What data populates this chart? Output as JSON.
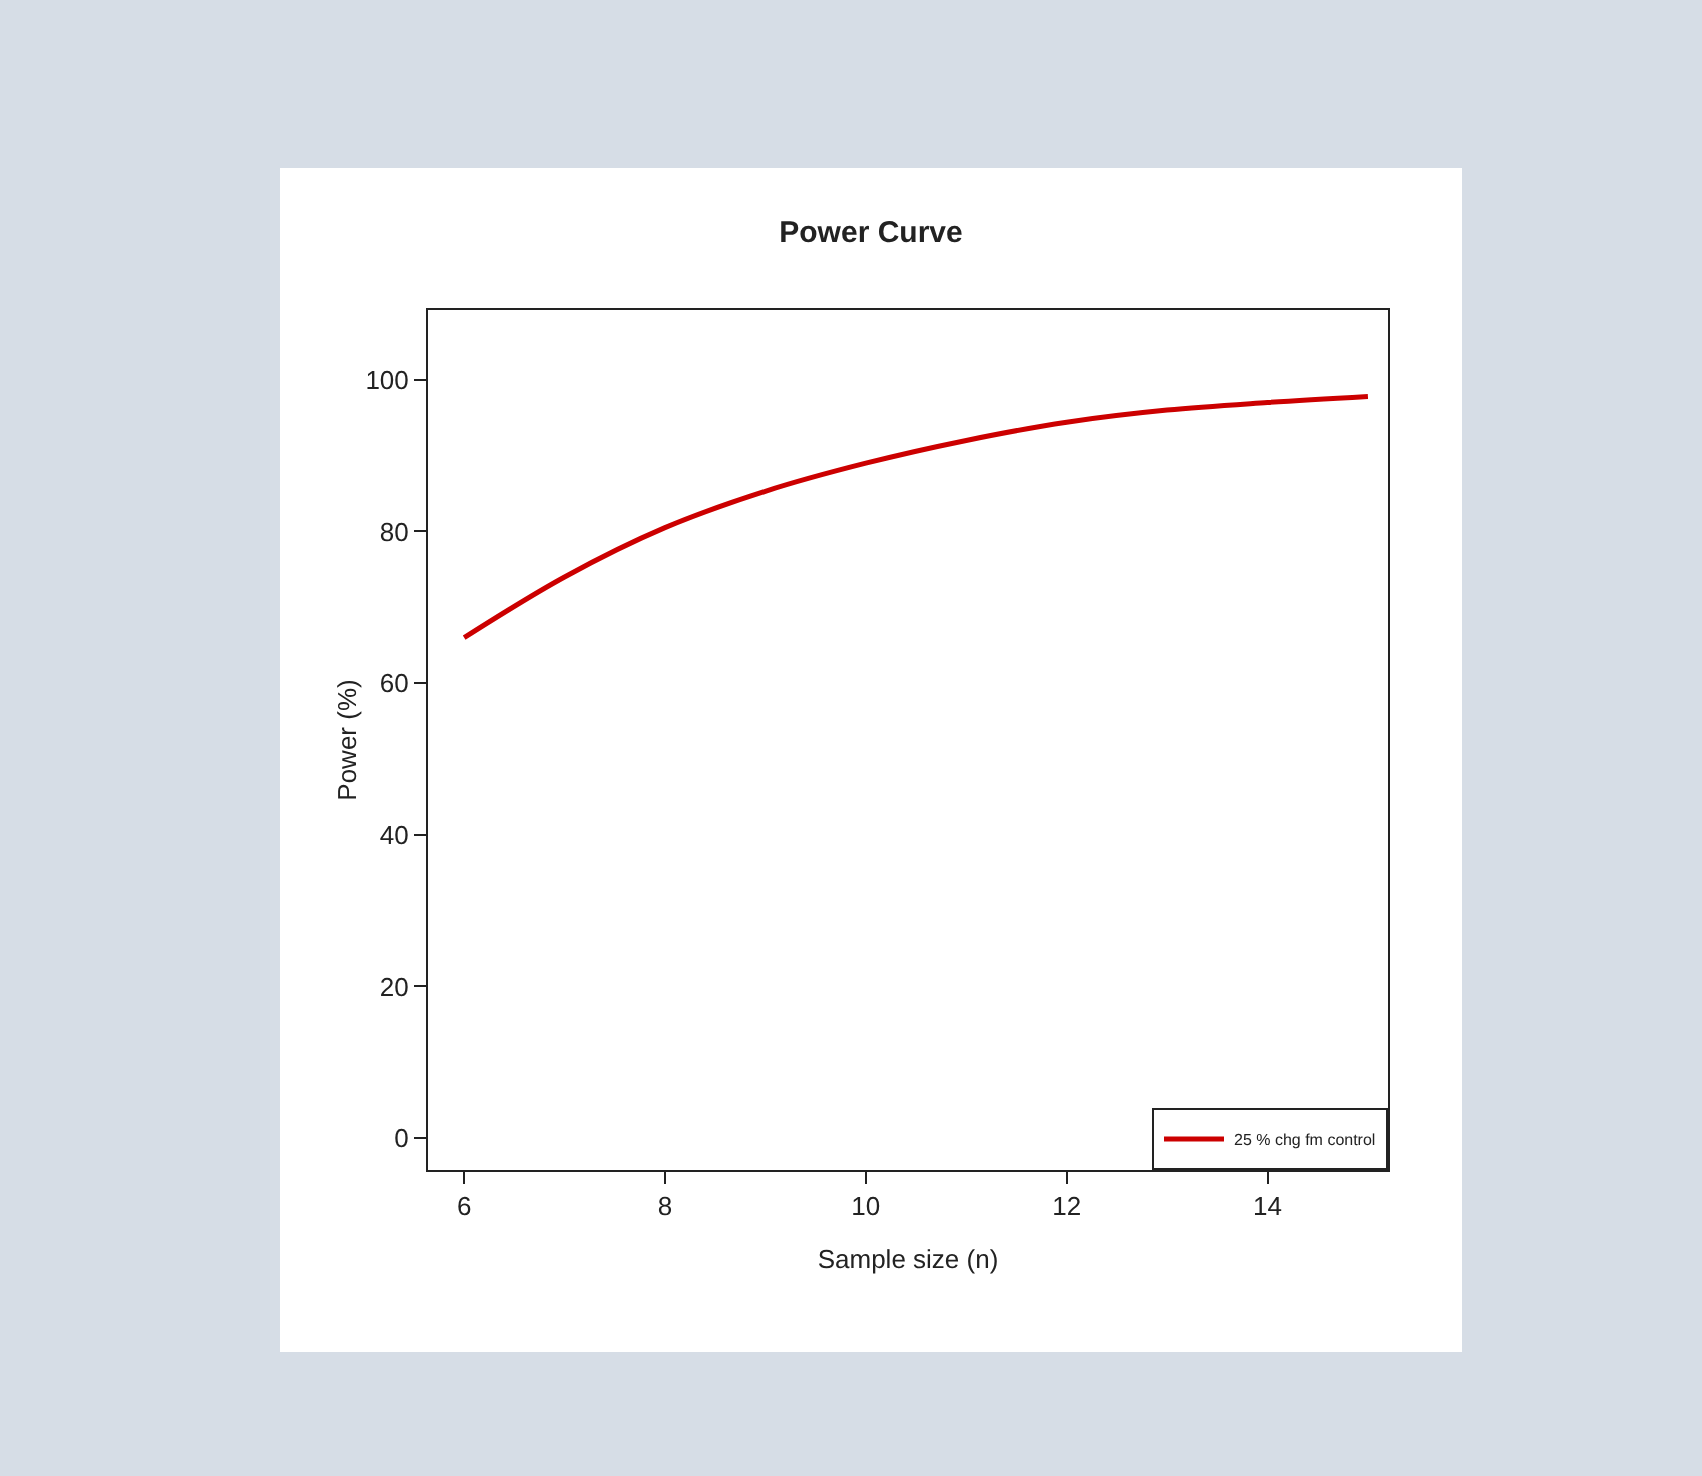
{
  "chart_data": {
    "type": "line",
    "title": "Power Curve",
    "xlabel": "Sample size (n)",
    "ylabel": "Power (%)",
    "x": [
      6,
      7,
      8,
      9,
      10,
      11,
      12,
      13,
      14,
      15
    ],
    "series": [
      {
        "name": "25 % chg fm control",
        "color": "#cc0000",
        "values": [
          66,
          74,
          80.5,
          85.3,
          89,
          92,
          94.4,
          96,
          97,
          97.8
        ]
      }
    ],
    "xlim": [
      5.64,
      15.2
    ],
    "xticks": [
      6,
      8,
      10,
      12,
      14
    ],
    "ylim": [
      -4.2,
      109.2
    ],
    "yticks": [
      0,
      20,
      40,
      60,
      80,
      100
    ],
    "grid": false,
    "legend": "bottom right",
    "marker": "none",
    "line_style": "solid"
  }
}
